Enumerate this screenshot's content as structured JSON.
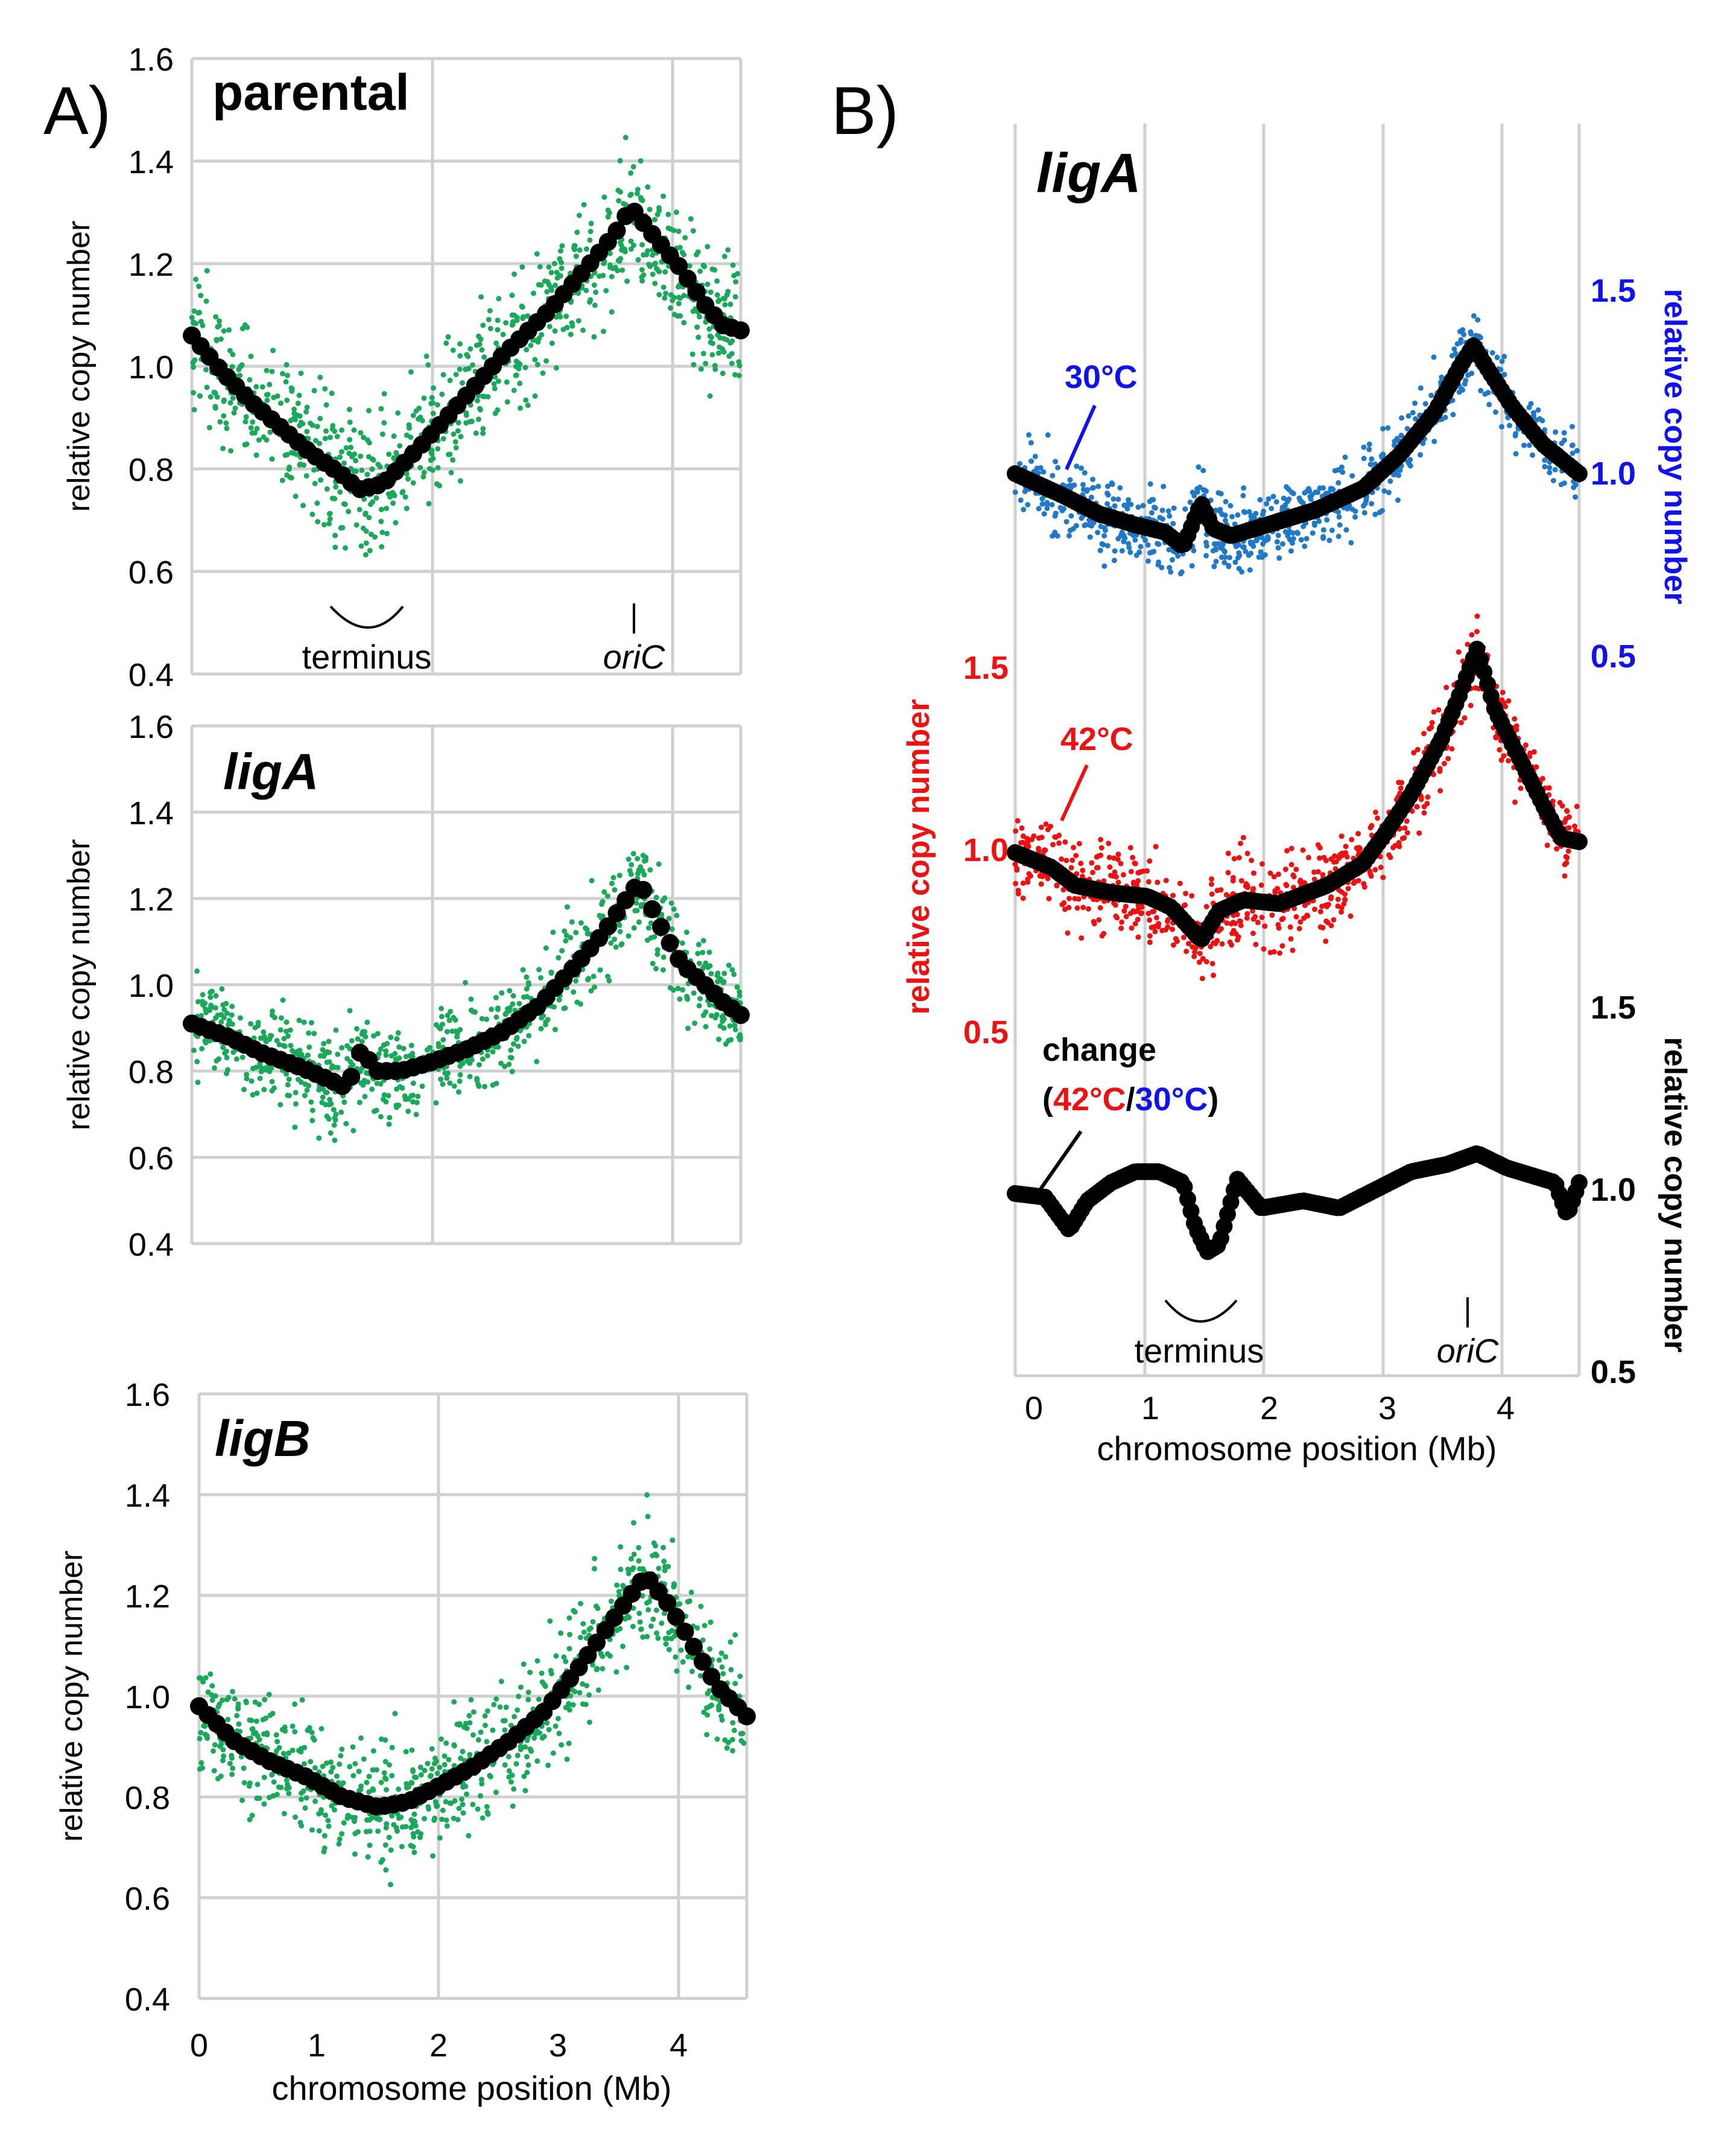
{
  "panel_labels": {
    "a": "A)",
    "b": "B)"
  },
  "colors": {
    "green": "#1aa95a",
    "blue": "#1f78c8",
    "blue_text": "#1111ee",
    "red": "#ee1111",
    "black": "#000000",
    "grid": "#d0d0d0"
  },
  "shared": {
    "xlabel": "chromosome position (Mb)",
    "ylabel": "relative copy number",
    "terminus_label": "terminus",
    "oric_label": "oriC"
  },
  "chart_data": [
    {
      "id": "A-parental",
      "type": "scatter",
      "title": "parental",
      "title_italic": false,
      "xlim": [
        0,
        4.6
      ],
      "ylim": [
        0.4,
        1.6
      ],
      "yticks": [
        "0.4",
        "0.6",
        "0.8",
        "1.0",
        "1.2",
        "1.4",
        "1.6"
      ],
      "xticks": [],
      "xlabel": "",
      "ylabel": "relative copy number",
      "grid": true,
      "annotations": {
        "terminus": true,
        "oriC": true
      },
      "series": [
        {
          "name": "raw reads (scatter)",
          "color": "green",
          "spread": 0.065,
          "x": [
            0,
            0.25,
            0.5,
            0.75,
            1.0,
            1.25,
            1.4,
            1.6,
            1.9,
            2.25,
            2.6,
            3.0,
            3.3,
            3.55,
            3.68,
            3.85,
            4.1,
            4.3,
            4.45,
            4.6
          ],
          "y": [
            1.06,
            0.99,
            0.93,
            0.88,
            0.83,
            0.79,
            0.76,
            0.77,
            0.84,
            0.93,
            1.02,
            1.11,
            1.19,
            1.26,
            1.31,
            1.26,
            1.19,
            1.12,
            1.08,
            1.07
          ]
        },
        {
          "name": "smoothed",
          "color": "black",
          "x": [
            0,
            0.25,
            0.5,
            0.75,
            1.0,
            1.25,
            1.4,
            1.6,
            1.9,
            2.25,
            2.6,
            3.0,
            3.3,
            3.55,
            3.68,
            3.85,
            4.1,
            4.3,
            4.45,
            4.6
          ],
          "y": [
            1.06,
            0.99,
            0.93,
            0.88,
            0.83,
            0.79,
            0.76,
            0.77,
            0.84,
            0.93,
            1.02,
            1.11,
            1.19,
            1.26,
            1.31,
            1.26,
            1.19,
            1.12,
            1.08,
            1.07
          ]
        }
      ]
    },
    {
      "id": "A-ligA",
      "type": "scatter",
      "title": "ligA",
      "title_italic": true,
      "xlim": [
        0,
        4.6
      ],
      "ylim": [
        0.4,
        1.6
      ],
      "yticks": [
        "0.4",
        "0.6",
        "0.8",
        "1.0",
        "1.2",
        "1.4",
        "1.6"
      ],
      "xticks": [],
      "xlabel": "",
      "ylabel": "relative copy number",
      "grid": true,
      "annotations": {
        "terminus": false,
        "oriC": false
      },
      "series": [
        {
          "name": "raw reads (scatter)",
          "color": "green",
          "spread": 0.055,
          "x": [
            0,
            0.3,
            0.6,
            0.9,
            1.15,
            1.3,
            1.42,
            1.55,
            1.75,
            2.0,
            2.3,
            2.6,
            2.9,
            3.2,
            3.45,
            3.62,
            3.75,
            3.9,
            4.1,
            4.3,
            4.45,
            4.6
          ],
          "y": [
            0.91,
            0.88,
            0.84,
            0.81,
            0.78,
            0.76,
            0.85,
            0.8,
            0.8,
            0.82,
            0.85,
            0.89,
            0.95,
            1.04,
            1.12,
            1.19,
            1.24,
            1.15,
            1.05,
            1.0,
            0.96,
            0.93
          ]
        },
        {
          "name": "smoothed",
          "color": "black",
          "x": [
            0,
            0.3,
            0.6,
            0.9,
            1.15,
            1.3,
            1.42,
            1.55,
            1.75,
            2.0,
            2.3,
            2.6,
            2.9,
            3.2,
            3.45,
            3.62,
            3.75,
            3.9,
            4.1,
            4.3,
            4.45,
            4.6
          ],
          "y": [
            0.91,
            0.88,
            0.84,
            0.81,
            0.78,
            0.76,
            0.85,
            0.8,
            0.8,
            0.82,
            0.85,
            0.89,
            0.95,
            1.04,
            1.12,
            1.19,
            1.24,
            1.15,
            1.05,
            1.0,
            0.96,
            0.93
          ]
        }
      ]
    },
    {
      "id": "A-ligB",
      "type": "scatter",
      "title": "ligB",
      "title_italic": true,
      "xlim": [
        0,
        4.6
      ],
      "ylim": [
        0.4,
        1.6
      ],
      "yticks": [
        "0.4",
        "0.6",
        "0.8",
        "1.0",
        "1.2",
        "1.4",
        "1.6"
      ],
      "xticks": [
        "0",
        "1",
        "2",
        "3",
        "4"
      ],
      "xlabel": "chromosome position (Mb)",
      "ylabel": "relative copy number",
      "grid": true,
      "annotations": {
        "terminus": false,
        "oriC": false
      },
      "series": [
        {
          "name": "raw reads (scatter)",
          "color": "green",
          "spread": 0.06,
          "x": [
            0,
            0.3,
            0.6,
            0.9,
            1.2,
            1.5,
            1.75,
            2.0,
            2.3,
            2.6,
            2.9,
            3.2,
            3.5,
            3.75,
            3.95,
            4.15,
            4.35,
            4.6
          ],
          "y": [
            0.98,
            0.91,
            0.87,
            0.84,
            0.8,
            0.78,
            0.79,
            0.82,
            0.86,
            0.91,
            0.97,
            1.06,
            1.16,
            1.24,
            1.18,
            1.1,
            1.02,
            0.96
          ]
        },
        {
          "name": "smoothed",
          "color": "black",
          "x": [
            0,
            0.3,
            0.6,
            0.9,
            1.2,
            1.5,
            1.75,
            2.0,
            2.3,
            2.6,
            2.9,
            3.2,
            3.5,
            3.75,
            3.95,
            4.15,
            4.35,
            4.6
          ],
          "y": [
            0.98,
            0.91,
            0.87,
            0.84,
            0.8,
            0.78,
            0.79,
            0.82,
            0.86,
            0.91,
            0.97,
            1.06,
            1.16,
            1.24,
            1.18,
            1.1,
            1.02,
            0.96
          ]
        }
      ]
    },
    {
      "id": "B-ligA",
      "type": "scatter",
      "title": "ligA",
      "title_italic": true,
      "xlim": [
        -0.1,
        4.6
      ],
      "xticks": [
        "0",
        "1",
        "2",
        "3",
        "4"
      ],
      "xlabel": "chromosome position (Mb)",
      "grid": true,
      "annotations": {
        "terminus": true,
        "oriC": true
      },
      "temp_labels": {
        "t30": "30°C",
        "t42": "42°C"
      },
      "change_label": {
        "word": "change",
        "open": "(",
        "num": "42°C",
        "slash": "/",
        "den": "30°C",
        "close": ")"
      },
      "axes": {
        "right_top": {
          "label": "relative copy number",
          "ticks": [
            "1.5",
            "1.0",
            "0.5"
          ],
          "color": "blue_text"
        },
        "left_mid": {
          "label": "relative copy number",
          "ticks": [
            "1.5",
            "1.0",
            "0.5"
          ],
          "color": "red"
        },
        "right_bottom": {
          "label": "relative copy number",
          "ticks": [
            "1.5",
            "1.0",
            "0.5"
          ],
          "color": "black"
        }
      },
      "series": [
        {
          "name": "30°C",
          "color": "blue",
          "axis": "right_top",
          "spread": 0.05,
          "x": [
            -0.1,
            0.3,
            0.6,
            0.9,
            1.15,
            1.3,
            1.45,
            1.55,
            1.7,
            2.0,
            2.4,
            2.8,
            3.1,
            3.4,
            3.6,
            3.72,
            3.85,
            4.05,
            4.3,
            4.6
          ],
          "y": [
            1.0,
            0.94,
            0.89,
            0.86,
            0.84,
            0.8,
            0.92,
            0.85,
            0.83,
            0.86,
            0.9,
            0.96,
            1.05,
            1.17,
            1.29,
            1.35,
            1.28,
            1.18,
            1.08,
            1.0
          ]
        },
        {
          "name": "42°C",
          "color": "red",
          "axis": "left_mid",
          "spread": 0.06,
          "x": [
            -0.1,
            0.2,
            0.4,
            0.7,
            1.0,
            1.2,
            1.45,
            1.6,
            1.8,
            2.1,
            2.5,
            2.8,
            3.0,
            3.2,
            3.45,
            3.6,
            3.75,
            3.9,
            4.1,
            4.3,
            4.45,
            4.6
          ],
          "y": [
            0.99,
            0.95,
            0.9,
            0.88,
            0.87,
            0.84,
            0.75,
            0.83,
            0.86,
            0.85,
            0.9,
            0.96,
            1.05,
            1.15,
            1.3,
            1.42,
            1.55,
            1.38,
            1.25,
            1.12,
            1.03,
            1.02
          ]
        },
        {
          "name": "change (42°C/30°C)",
          "color": "black",
          "axis": "right_bottom",
          "x": [
            -0.1,
            0.15,
            0.35,
            0.5,
            0.7,
            0.9,
            1.1,
            1.3,
            1.4,
            1.5,
            1.6,
            1.75,
            1.95,
            2.3,
            2.6,
            2.9,
            3.2,
            3.5,
            3.75,
            4.0,
            4.2,
            4.4,
            4.5,
            4.6
          ],
          "y": [
            0.99,
            0.98,
            0.89,
            0.97,
            1.02,
            1.05,
            1.05,
            1.02,
            0.9,
            0.83,
            0.85,
            1.03,
            0.95,
            0.97,
            0.95,
            1.0,
            1.05,
            1.07,
            1.1,
            1.06,
            1.04,
            1.02,
            0.93,
            1.02
          ]
        }
      ]
    }
  ]
}
